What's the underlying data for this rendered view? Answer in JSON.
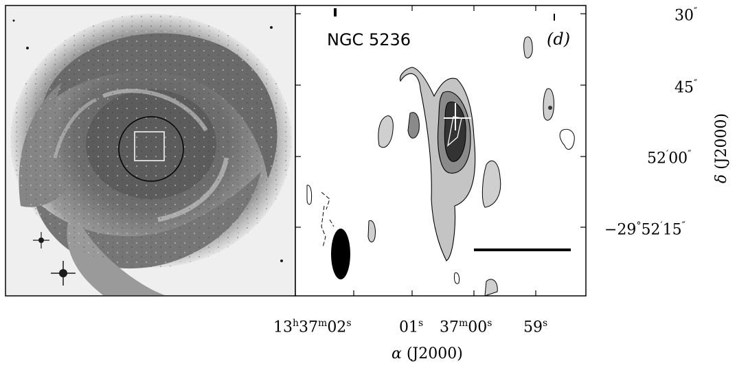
{
  "figure": {
    "object_label": "NGC 5236",
    "panel_label": "(d)",
    "left_panel_desc": "optical",
    "right_panel_desc": "contour map with beam ellipse and scale bar"
  },
  "axes": {
    "ra": {
      "label_greek": "α",
      "label_text": " (J2000)",
      "ticks": [
        {
          "h": "13",
          "m": "37",
          "s": "02"
        },
        {
          "s": "01"
        },
        {
          "m": "37",
          "s": "00"
        },
        {
          "s": "59"
        }
      ]
    },
    "dec": {
      "label_greek": "δ",
      "label_text": " (J2000)",
      "ticks": [
        {
          "arcsec": "30"
        },
        {
          "arcsec": "45"
        },
        {
          "arcmin": "52",
          "arcsec": "00"
        },
        {
          "deg": "−29",
          "arcmin": "52",
          "arcsec": "15"
        }
      ]
    }
  },
  "colors": {
    "frame": "#000000",
    "background": "#ffffff"
  }
}
